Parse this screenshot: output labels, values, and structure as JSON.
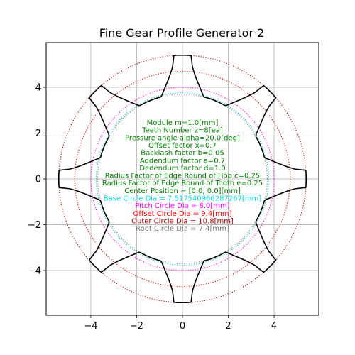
{
  "chart_data": {
    "type": "line",
    "title": "Fine Gear Profile Generator 2",
    "xlim": [
      -5.95,
      5.95
    ],
    "ylim": [
      -5.95,
      5.95
    ],
    "grid": true,
    "x_ticks": [
      -4,
      -2,
      0,
      2,
      4
    ],
    "y_ticks": [
      -4,
      -2,
      0,
      2,
      4
    ],
    "x_tick_labels": [
      "−4",
      "−2",
      "0",
      "2",
      "4"
    ],
    "y_tick_labels": [
      "−4",
      "−2",
      "0",
      "2",
      "4"
    ],
    "gear": {
      "teeth": 8,
      "center": [
        0,
        0
      ],
      "outer_radius": 5.4,
      "root_radius": 3.7,
      "tip_half_angle_deg": 4.0,
      "root_half_angle_deg": 8.0,
      "line_color": "#000000"
    },
    "circles": [
      {
        "radius": 3.76,
        "color": "#00c8c8"
      },
      {
        "radius": 4.0,
        "color": "#ff00ff"
      },
      {
        "radius": 4.7,
        "color": "#e60000"
      },
      {
        "radius": 5.4,
        "color": "#b40000"
      },
      {
        "radius": 3.7,
        "color": "#808080"
      }
    ],
    "annotations": [
      {
        "text": "Module m=1.0[mm]",
        "color": "#008000"
      },
      {
        "text": "Teeth Number z=8[ea]",
        "color": "#008000"
      },
      {
        "text": "Pressure angle alpha=20.0[deg]",
        "color": "#008000"
      },
      {
        "text": "Offset factor x=0.7",
        "color": "#008000"
      },
      {
        "text": "Backlash factor b=0.05",
        "color": "#008000"
      },
      {
        "text": "Addendum factor a=0.7",
        "color": "#008000"
      },
      {
        "text": "Dedendum factor d=1.0",
        "color": "#008000"
      },
      {
        "text": "Radius Factor of Edge Round of Hob c=0.25",
        "color": "#008000"
      },
      {
        "text": "Radius Factor of Edge Round of Tooth e=0.25",
        "color": "#008000"
      },
      {
        "text": "Center Position = [0.0, 0.0][mm]",
        "color": "#008000"
      },
      {
        "text": "Base Circle Dia = 7.517540966287267[mm]",
        "color": "#00d8d8"
      },
      {
        "text": "Pitch Circle Dia = 8.0[mm]",
        "color": "#ff00ff"
      },
      {
        "text": "Offset Circle Dia = 9.4[mm]",
        "color": "#ff0000"
      },
      {
        "text": "Outer Circle Dia = 10.8[mm]",
        "color": "#b40000"
      },
      {
        "text": "Root Circle Dia = 7.4[mm]",
        "color": "#808080"
      }
    ]
  }
}
